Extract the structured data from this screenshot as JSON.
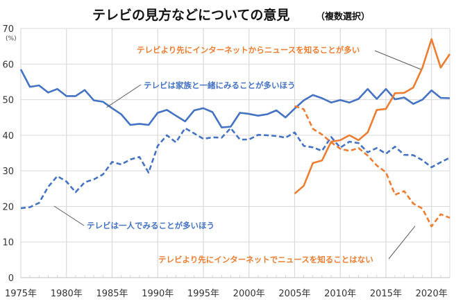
{
  "chart_data": {
    "type": "line",
    "title": "テレビの見方などについての意見",
    "subtitle": "（複数選択）",
    "xlabel": "",
    "ylabel": "",
    "y_unit": "(%)",
    "ylim": [
      0,
      70
    ],
    "y_ticks": [
      0,
      10,
      20,
      30,
      40,
      50,
      60,
      70
    ],
    "xlim": [
      1975,
      2022
    ],
    "x_ticks": [
      1975,
      1980,
      1985,
      1990,
      1995,
      2000,
      2005,
      2010,
      2015,
      2020
    ],
    "x_tick_labels": [
      "1975年",
      "1980年",
      "1985年",
      "1990年",
      "1995年",
      "2000年",
      "2005年",
      "2010年",
      "2015年",
      "2020年"
    ],
    "grid": true,
    "legend": "inline-annotations",
    "series": [
      {
        "name": "テレビは家族と一緒にみることが多いほう",
        "color": "#4472c4",
        "style": "solid",
        "x": [
          1975,
          1976,
          1977,
          1978,
          1979,
          1980,
          1981,
          1982,
          1983,
          1984,
          1985,
          1986,
          1987,
          1988,
          1989,
          1990,
          1991,
          1992,
          1993,
          1994,
          1995,
          1996,
          1997,
          1998,
          1999,
          2000,
          2001,
          2002,
          2003,
          2004,
          2005,
          2006,
          2007,
          2008,
          2009,
          2010,
          2011,
          2012,
          2013,
          2014,
          2015,
          2016,
          2017,
          2018,
          2019,
          2020,
          2021,
          2022
        ],
        "values": [
          58.5,
          53.6,
          54.0,
          52.0,
          53.0,
          51.0,
          51.0,
          52.7,
          49.8,
          49.4,
          47.6,
          45.9,
          42.9,
          43.2,
          42.9,
          46.3,
          47.1,
          45.5,
          43.9,
          47.0,
          47.6,
          46.5,
          42.2,
          42.4,
          46.3,
          46.0,
          45.5,
          45.9,
          47.0,
          45.0,
          47.5,
          49.8,
          51.3,
          50.4,
          49.2,
          49.9,
          49.2,
          50.2,
          53.0,
          50.2,
          53.0,
          50.1,
          50.6,
          48.8,
          50.0,
          52.6,
          50.5,
          50.4
        ]
      },
      {
        "name": "テレビは一人でみることが多いほう",
        "color": "#4472c4",
        "style": "dashed",
        "x": [
          1975,
          1976,
          1977,
          1978,
          1979,
          1980,
          1981,
          1982,
          1983,
          1984,
          1985,
          1986,
          1987,
          1988,
          1989,
          1990,
          1991,
          1992,
          1993,
          1994,
          1995,
          1996,
          1997,
          1998,
          1999,
          2000,
          2001,
          2002,
          2003,
          2004,
          2005,
          2006,
          2007,
          2008,
          2009,
          2010,
          2011,
          2012,
          2013,
          2014,
          2015,
          2016,
          2017,
          2018,
          2019,
          2020,
          2021,
          2022
        ],
        "values": [
          19.5,
          19.8,
          21.0,
          25.5,
          28.5,
          27.0,
          24.0,
          26.8,
          27.6,
          29.0,
          32.5,
          31.8,
          33.2,
          33.9,
          29.5,
          37.0,
          40.0,
          38.0,
          42.0,
          40.5,
          39.0,
          39.4,
          39.3,
          42.0,
          38.8,
          38.8,
          40.1,
          40.0,
          39.8,
          39.3,
          40.8,
          37.0,
          36.6,
          35.6,
          39.5,
          36.5,
          38.2,
          37.8,
          35.2,
          36.4,
          34.8,
          36.8,
          34.5,
          34.4,
          33.0,
          31.0,
          32.4,
          33.7
        ]
      },
      {
        "name": "テレビより先にインターネットからニュースを知ることが多い",
        "color": "#ed7d31",
        "style": "solid",
        "x": [
          2005,
          2006,
          2007,
          2008,
          2009,
          2010,
          2011,
          2012,
          2013,
          2014,
          2015,
          2016,
          2017,
          2018,
          2019,
          2020,
          2021,
          2022
        ],
        "values": [
          23.6,
          25.8,
          32.2,
          32.9,
          38.2,
          38.6,
          40.0,
          38.6,
          40.8,
          47.1,
          47.4,
          51.8,
          51.9,
          53.4,
          59.0,
          67.0,
          59.0,
          62.8
        ]
      },
      {
        "name": "テレビより先にインターネットでニュースを知ることはない",
        "color": "#ed7d31",
        "style": "dashed",
        "x": [
          2005,
          2006,
          2007,
          2008,
          2009,
          2010,
          2011,
          2012,
          2013,
          2014,
          2015,
          2016,
          2017,
          2018,
          2019,
          2020,
          2021,
          2022
        ],
        "values": [
          48.2,
          47.3,
          41.8,
          40.2,
          38.0,
          36.2,
          35.6,
          36.4,
          34.3,
          31.5,
          29.6,
          23.3,
          24.3,
          20.8,
          19.4,
          14.4,
          17.8,
          16.8
        ]
      }
    ],
    "annotations": [
      {
        "text": "テレビより先にインターネットからニュースを知ることが多い",
        "color": "#ed7d31",
        "series": 2
      },
      {
        "text": "テレビは家族と一緒にみることが多いほう",
        "color": "#4472c4",
        "series": 0
      },
      {
        "text": "テレビは一人でみることが多いほう",
        "color": "#4472c4",
        "series": 1
      },
      {
        "text": "テレビより先にインターネットでニュースを知ることはない",
        "color": "#ed7d31",
        "series": 3
      }
    ]
  }
}
